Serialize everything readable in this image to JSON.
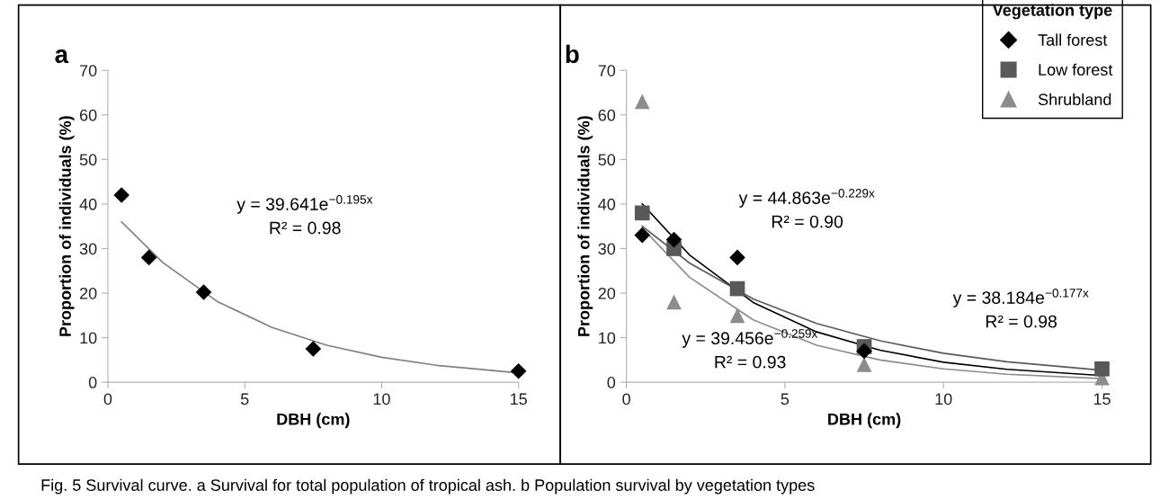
{
  "chart_data": [
    {
      "type": "scatter",
      "title": "a",
      "xlabel": "DBH (cm)",
      "ylabel": "Proportion of individuals (%)",
      "xlim": [
        0,
        15
      ],
      "ylim": [
        0,
        70
      ],
      "xticks": [
        0,
        5,
        10,
        15
      ],
      "yticks": [
        0,
        10,
        20,
        30,
        40,
        50,
        60,
        70
      ],
      "grid": false,
      "legend": false,
      "series": [
        {
          "color": "#000000",
          "marker": "diamond",
          "x": [
            0.5,
            1.5,
            3.5,
            7.5,
            15
          ],
          "values": [
            42,
            28,
            20.2,
            7.5,
            2.5
          ]
        },
        {
          "type": "line",
          "color": "#7f7f7f",
          "line_style": "solid",
          "x": [
            0.5,
            2,
            4,
            6,
            8,
            10,
            12,
            15
          ],
          "values": [
            36.0,
            26.9,
            18.1,
            12.3,
            8.3,
            5.6,
            3.8,
            2.1
          ]
        }
      ],
      "annotations": [
        "y = 39.641e$^{−0.195x}$",
        "R² = 0.98",
        "Fig. 5 Survival curve. a Survival for total population of tropical ash. b Population survival by vegetation types"
      ]
    },
    {
      "type": "scatter",
      "title": "b",
      "xlabel": "DBH (cm)",
      "ylabel": "Proportion of individuals (%)",
      "xlim": [
        0,
        15
      ],
      "ylim": [
        0,
        70
      ],
      "xticks": [
        0,
        5,
        10,
        15
      ],
      "yticks": [
        0,
        10,
        20,
        30,
        40,
        50,
        60,
        70
      ],
      "grid": false,
      "legend": "top right",
      "legend_title": "Vegetation type",
      "series": [
        {
          "name": "Tall forest",
          "color": "#000000",
          "marker": "diamond",
          "x": [
            0.5,
            1.5,
            3.5,
            7.5
          ],
          "values": [
            33,
            32,
            28,
            7
          ]
        },
        {
          "name": "Low forest",
          "color": "#595959",
          "marker": "square",
          "x": [
            0.5,
            1.5,
            3.5,
            7.5,
            15
          ],
          "values": [
            38,
            30,
            21,
            8,
            3
          ]
        },
        {
          "name": "Shrubland",
          "color": "#8c8c8c",
          "marker": "triangle",
          "x": [
            0.5,
            1.5,
            3.5,
            7.5,
            15
          ],
          "values": [
            63,
            18,
            15,
            4,
            1
          ]
        },
        {
          "type": "line",
          "color": "#000000",
          "line_style": "solid",
          "x": [
            0.5,
            2,
            4,
            6,
            8,
            10,
            12,
            15
          ],
          "values": [
            40.0,
            28.5,
            17.9,
            11.3,
            7.2,
            4.5,
            2.9,
            1.5
          ]
        },
        {
          "type": "line",
          "color": "#595959",
          "line_style": "solid",
          "x": [
            0.5,
            2,
            4,
            6,
            8,
            10,
            12,
            15
          ],
          "values": [
            35.0,
            26.7,
            18.7,
            13.2,
            9.3,
            6.5,
            4.6,
            2.7
          ]
        },
        {
          "type": "line",
          "color": "#8c8c8c",
          "line_style": "solid",
          "x": [
            0.5,
            2,
            4,
            6,
            8,
            10,
            12,
            15
          ],
          "values": [
            34.6,
            23.5,
            14.0,
            8.3,
            5.0,
            3.0,
            1.8,
            0.8
          ]
        }
      ],
      "annotations": [
        "y = 44.863e$^{−0.229x}$",
        "R² = 0.90",
        "y = 38.184e$^{−0.177x}$",
        "R² = 0.98",
        "y = 39.456e$^{−0.259x}$",
        "R² = 0.93"
      ]
    }
  ]
}
